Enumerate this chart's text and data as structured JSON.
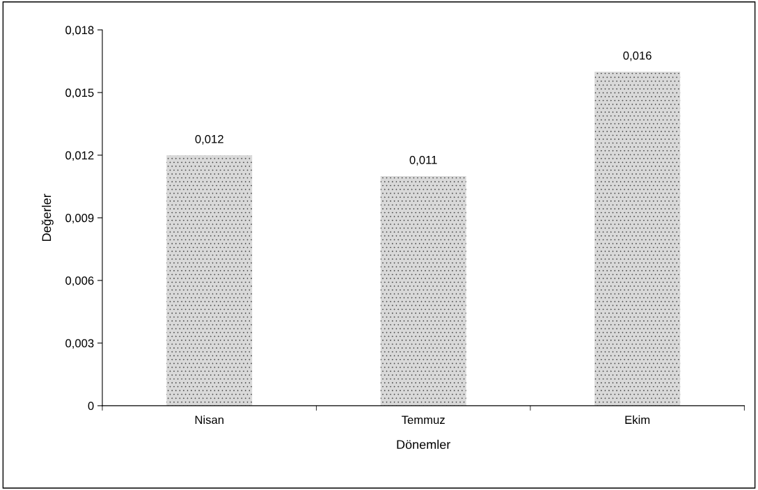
{
  "chart_data": {
    "type": "bar",
    "xlabel": "Dönemler",
    "ylabel": "Değerler",
    "categories": [
      "Nisan",
      "Temmuz",
      "Ekim"
    ],
    "values": [
      0.012,
      0.011,
      0.016
    ],
    "value_labels": [
      "0,012",
      "0,011",
      "0,016"
    ],
    "color": "#d9d9d9",
    "ylim": [
      0,
      0.018
    ],
    "yticks": [
      {
        "value": 0,
        "label": "0"
      },
      {
        "value": 0.003,
        "label": "0,003"
      },
      {
        "value": 0.006,
        "label": "0,006"
      },
      {
        "value": 0.009,
        "label": "0,009"
      },
      {
        "value": 0.012,
        "label": "0,012"
      },
      {
        "value": 0.015,
        "label": "0,015"
      },
      {
        "value": 0.018,
        "label": "0,018"
      }
    ],
    "grid": false,
    "legend": false
  }
}
